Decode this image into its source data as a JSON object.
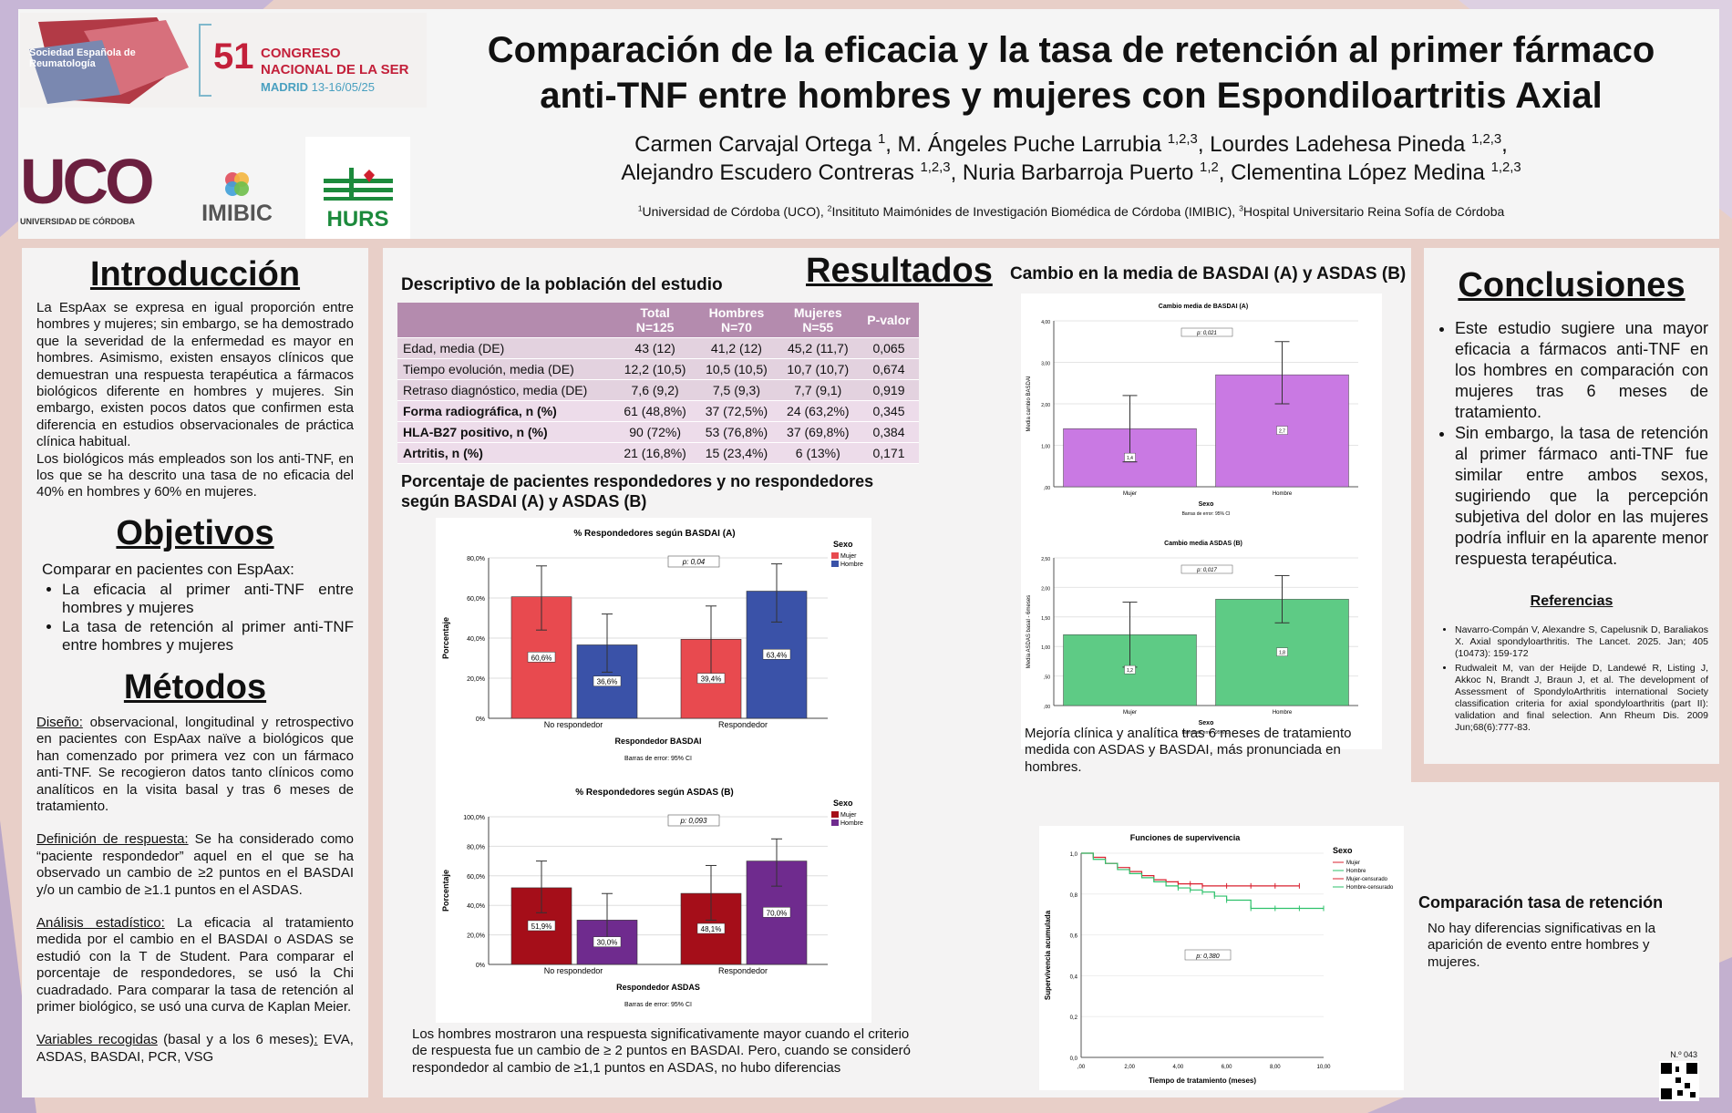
{
  "header": {
    "title_line1": "Comparación de la eficacia y la tasa de retención al primer fármaco",
    "title_line2": "anti-TNF entre hombres y mujeres con Espondiloartritis Axial",
    "authors_line1": "Carmen Carvajal Ortega 1, M. Ángeles Puche Larrubia 1,2,3, Lourdes Ladehesa Pineda 1,2,3,",
    "authors_line2": "Alejandro Escudero Contreras 1,2,3, Nuria Barbarroja Puerto 1,2, Clementina López Medina 1,2,3",
    "affiliations": "1Universidad de Córdoba (UCO), 2Insitituto Maimónides de Investigación Biomédica de Córdoba (IMIBIC), 3Hospital Universitario Reina Sofía de Córdoba",
    "congress_num": "51",
    "congress_l1": "CONGRESO",
    "congress_l2": "NACIONAL DE LA SER",
    "congress_city": "MADRID",
    "congress_dates": "13-16/05/25",
    "society": "Sociedad Española de Reumatología",
    "uco": "UCO",
    "uco_sub": "UNIVERSIDAD DE CÓRDOBA",
    "imibic": "IMIBIC",
    "hurs": "HURS"
  },
  "intro": {
    "heading": "Introducción",
    "p1": "La EspAax se expresa en igual proporción entre hombres y mujeres; sin embargo, se ha demostrado que la severidad de la enfermedad es mayor en hombres. Asimismo, existen ensayos clínicos que demuestran una respuesta terapéutica a fármacos biológicos diferente en hombres y mujeres. Sin embargo, existen pocos datos que confirmen esta diferencia en estudios observacionales de práctica clínica habitual.",
    "p2": "Los biológicos más empleados son los anti-TNF, en los que se ha descrito una tasa de no eficacia del 40% en hombres y 60% en mujeres."
  },
  "objectives": {
    "heading": "Objetivos",
    "lead": "Comparar en pacientes con EspAax:",
    "items": [
      "La eficacia al primer anti-TNF entre hombres y mujeres",
      "La tasa de retención al primer anti-TNF entre hombres y mujeres"
    ]
  },
  "methods": {
    "heading": "Métodos",
    "design_label": "Diseño:",
    "design": " observacional, longitudinal y retrospectivo en pacientes con EspAax naïve a biológicos que han comenzado por primera vez con un fármaco anti-TNF. Se recogieron datos tanto clínicos como analíticos en la visita basal y tras 6 meses de tratamiento.",
    "resp_label": "Definición de respuesta:",
    "resp": " Se ha considerado como “paciente respondedor” aquel en el que se ha observado un cambio de ≥2 puntos en el BASDAI y/o un cambio de ≥1.1 puntos en el ASDAS.",
    "stat_label": "Análisis estadístico:",
    "stat": " La eficacia al tratamiento medida por el cambio en el BASDAI o ASDAS se estudió con la T de Student. Para comparar el porcentaje de respondedores, se usó la Chi cuadradado. Para comparar la tasa de retención al primer biológico, se usó una curva de Kaplan Meier.",
    "vars_label": "Variables recogidas",
    "vars_mid": " (basal y a los 6 meses)",
    "vars_colon": ":",
    "vars": " EVA, ASDAS, BASDAI, PCR, VSG"
  },
  "results": {
    "heading": "Resultados",
    "desc_title": "Descriptivo de la población del estudio",
    "table_headers": [
      "",
      "Total\nN=125",
      "Hombres\nN=70",
      "Mujeres\nN=55",
      "P-valor"
    ],
    "table_rows": [
      [
        "Edad, media (DE)",
        "43 (12)",
        "41,2 (12)",
        "45,2 (11,7)",
        "0,065"
      ],
      [
        "Tiempo evolución, media (DE)",
        "12,2 (10,5)",
        "10,5 (10,5)",
        "10,7 (10,7)",
        "0,674"
      ],
      [
        "Retraso diagnóstico, media (DE)",
        "7,6 (9,2)",
        "7,5 (9,3)",
        "7,7 (9,1)",
        "0,919"
      ],
      [
        "Forma radiográfica, n (%)",
        "61 (48,8%)",
        "37 (72,5%)",
        "24 (63,2%)",
        "0,345"
      ],
      [
        "HLA-B27 positivo, n (%)",
        "90 (72%)",
        "53 (76,8%)",
        "37 (69,8%)",
        "0,384"
      ],
      [
        "Artritis, n (%)",
        "21 (16,8%)",
        "15 (23,4%)",
        "6 (13%)",
        "0,171"
      ]
    ],
    "resp_title": "Porcentaje de pacientes respondedores y no respondedores según BASDAI (A) y ASDAS (B)",
    "resp_caption": "Los hombres mostraron una respuesta significativamente mayor cuando el criterio de respuesta fue un cambio de ≥ 2 puntos en BASDAI. Pero, cuando se consideró respondedor al cambio de  ≥1,1 puntos en ASDAS, no hubo diferencias",
    "change_title": "Cambio en la media de BASDAI (A) y ASDAS (B)",
    "change_caption": "Mejoría clínica y analítica tras 6 meses de tratamiento medida con ASDAS y BASDAI, más pronunciada en hombres.",
    "ret_title": "Comparación tasa de retención",
    "ret_caption": "No hay diferencias significativas en la aparición de evento entre hombres y mujeres."
  },
  "conclusions": {
    "heading": "Conclusiones",
    "items": [
      "Este estudio sugiere una mayor eficacia a fármacos anti-TNF en los hombres en comparación con mujeres tras 6 meses de tratamiento.",
      "Sin embargo, la tasa de retención al primer fármaco anti-TNF fue similar entre ambos sexos, sugiriendo que la percepción subjetiva del dolor en las mujeres podría influir en la aparente menor respuesta terapéutica."
    ],
    "refs_heading": "Referencias",
    "refs": [
      "Navarro-Compán V, Alexandre S, Capelusnik D, Baraliakos X. Axial spondyloarthritis. The Lancet. 2025. Jan; 405 (10473): 159-172",
      "Rudwaleit M, van der Heijde D, Landewé R, Listing J, Akkoc N, Brandt J, Braun J, et al. The development of Assessment of SpondyloArthritis international Society classification criteria for axial spondyloarthritis (part II): validation and final selection. Ann Rheum Dis. 2009 Jun;68(6):777-83."
    ],
    "poster_num": "N.º 043"
  },
  "chart_data": [
    {
      "type": "bar",
      "title": "% Respondedores según BASDAI (A)",
      "xlabel": "Respondedor BASDAI",
      "ylabel": "Porcentaje",
      "footnote": "Barras de error: 95% CI",
      "pvalue": "p: 0,04",
      "legend_title": "Sexo",
      "categories": [
        "No respondedor",
        "Respondedor"
      ],
      "ylim": [
        0,
        80
      ],
      "yticks": [
        "0%",
        "20,0%",
        "40,0%",
        "60,0%",
        "80,0%"
      ],
      "series": [
        {
          "name": "Mujer",
          "color": "#e84a4f",
          "values": [
            60.6,
            39.4
          ],
          "labels": [
            "60,6%",
            "39,4%"
          ],
          "ci": [
            [
              44,
              76
            ],
            [
              22,
              56
            ]
          ]
        },
        {
          "name": "Hombre",
          "color": "#3a52a8",
          "values": [
            36.6,
            63.4
          ],
          "labels": [
            "36,6%",
            "63,4%"
          ],
          "ci": [
            [
              23,
              52
            ],
            [
              48,
              77
            ]
          ]
        }
      ]
    },
    {
      "type": "bar",
      "title": "% Respondedores según ASDAS (B)",
      "xlabel": "Respondedor ASDAS",
      "ylabel": "Porcentaje",
      "footnote": "Barras de error: 95% CI",
      "pvalue": "p: 0,093",
      "legend_title": "Sexo",
      "categories": [
        "No respondedor",
        "Respondedor"
      ],
      "ylim": [
        0,
        100
      ],
      "yticks": [
        "0%",
        "20,0%",
        "40,0%",
        "60,0%",
        "80,0%",
        "100,0%"
      ],
      "series": [
        {
          "name": "Mujer",
          "color": "#a50e19",
          "values": [
            51.9,
            48.1
          ],
          "labels": [
            "51,9%",
            "48,1%"
          ],
          "ci": [
            [
              35,
              70
            ],
            [
              30,
              67
            ]
          ]
        },
        {
          "name": "Hombre",
          "color": "#6f2b8e",
          "values": [
            30.0,
            70.0
          ],
          "labels": [
            "30,0%",
            "70,0%"
          ],
          "ci": [
            [
              15,
              48
            ],
            [
              53,
              85
            ]
          ]
        }
      ]
    },
    {
      "type": "bar",
      "title": "Cambio media de BASDAI (A)",
      "xlabel": "Sexo",
      "ylabel": "Media cambio BASDAI",
      "footnote": "Barras de error: 95% CI",
      "pvalue": "p: 0,021",
      "categories": [
        "Mujer",
        "Hombre"
      ],
      "ylim": [
        0,
        4
      ],
      "yticks": [
        ",00",
        "1,00",
        "2,00",
        "3,00",
        "4,00"
      ],
      "color": "#c979e3",
      "values": [
        1.4,
        2.7
      ],
      "labels": [
        "1,4",
        "2,7"
      ],
      "ci": [
        [
          0.6,
          2.2
        ],
        [
          2.0,
          3.5
        ]
      ]
    },
    {
      "type": "bar",
      "title": "Cambio media ASDAS (B)",
      "xlabel": "Sexo",
      "ylabel": "Media ASDAS basal - 6meses",
      "footnote": "Barras de error: 95% CI",
      "pvalue": "p: 0,017",
      "categories": [
        "Mujer",
        "Hombre"
      ],
      "ylim": [
        0,
        2.5
      ],
      "yticks": [
        ",00",
        ",50",
        "1,00",
        "1,50",
        "2,00",
        "2,50"
      ],
      "color": "#5ecb85",
      "values": [
        1.2,
        1.8
      ],
      "labels": [
        "1,2",
        "1,8"
      ],
      "ci": [
        [
          0.65,
          1.75
        ],
        [
          1.4,
          2.2
        ]
      ]
    },
    {
      "type": "line",
      "title": "Funciones de supervivencia",
      "xlabel": "Tiempo de tratamiento (meses)",
      "ylabel": "Supervivencia acumulada",
      "pvalue": "p: 0,380",
      "legend_title": "Sexo",
      "xlim": [
        0,
        10
      ],
      "ylim": [
        0,
        1
      ],
      "xticks": [
        ",00",
        "2,00",
        "4,00",
        "6,00",
        "8,00",
        "10,00"
      ],
      "yticks": [
        "0,0",
        "0,2",
        "0,4",
        "0,6",
        "0,8",
        "1,0"
      ],
      "series": [
        {
          "name": "Mujer",
          "color": "#d9202f",
          "x": [
            0,
            0.5,
            1,
            1.5,
            2,
            2.5,
            3,
            3.5,
            4,
            4.5,
            5,
            6,
            7,
            8,
            9
          ],
          "y": [
            1,
            0.98,
            0.95,
            0.93,
            0.91,
            0.89,
            0.87,
            0.86,
            0.85,
            0.85,
            0.84,
            0.84,
            0.84,
            0.84,
            0.84
          ]
        },
        {
          "name": "Hombre",
          "color": "#2ec16b",
          "x": [
            0,
            0.5,
            1,
            1.5,
            2,
            2.5,
            3,
            3.5,
            4,
            4.5,
            5,
            5.5,
            6,
            7,
            8,
            9,
            10
          ],
          "y": [
            1,
            0.97,
            0.95,
            0.92,
            0.9,
            0.88,
            0.86,
            0.84,
            0.83,
            0.82,
            0.81,
            0.79,
            0.77,
            0.73,
            0.73,
            0.73,
            0.73
          ]
        }
      ],
      "legend": [
        "Mujer",
        "Hombre",
        "Mujer-censurado",
        "Hombre-censurado"
      ]
    }
  ]
}
